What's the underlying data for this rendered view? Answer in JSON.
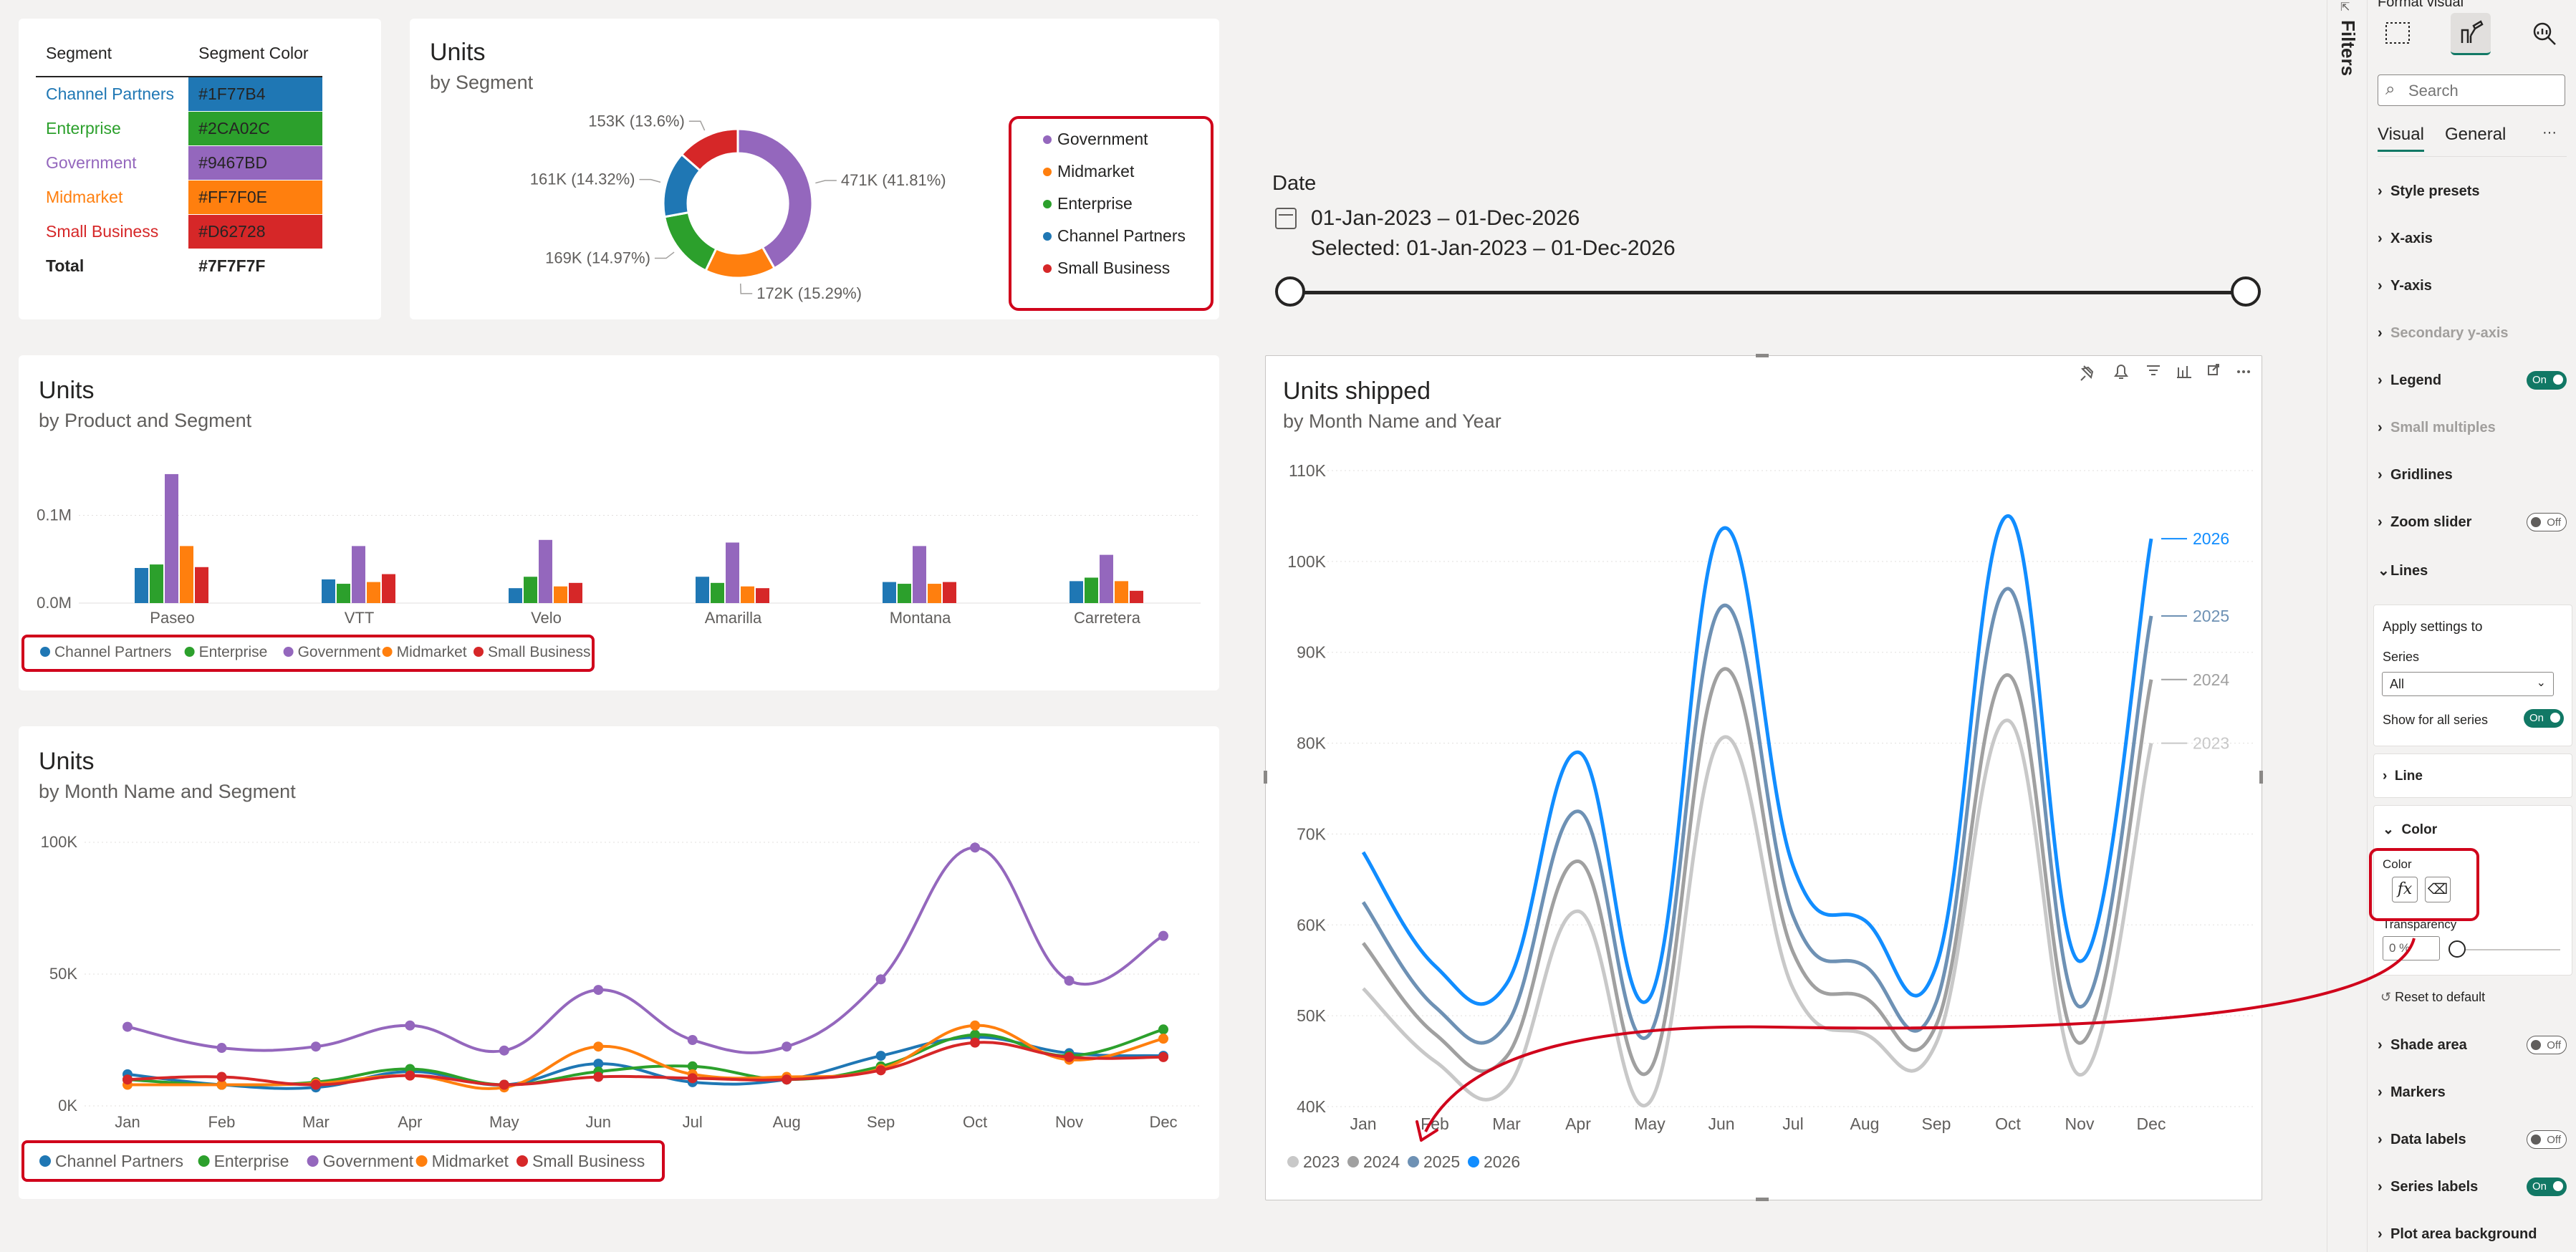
{
  "segment_table": {
    "headers": [
      "Segment",
      "Segment Color"
    ],
    "rows": [
      {
        "name": "Channel Partners",
        "color_label": "#1F77B4",
        "color": "#1F77B4"
      },
      {
        "name": "Enterprise",
        "color_label": "#2CA02C",
        "color": "#2CA02C"
      },
      {
        "name": "Government",
        "color_label": "#9467BD",
        "color": "#9467BD"
      },
      {
        "name": "Midmarket",
        "color_label": "#FF7F0E",
        "color": "#FF7F0E"
      },
      {
        "name": "Small Business",
        "color_label": "#D62728",
        "color": "#D62728"
      }
    ],
    "total": {
      "name": "Total",
      "color_label": "#7F7F7F"
    }
  },
  "donut": {
    "title": "Units",
    "subtitle": "by Segment"
  },
  "bar": {
    "title": "Units",
    "subtitle": "by Product and Segment"
  },
  "seg_line": {
    "title": "Units",
    "subtitle": "by Month Name and Segment"
  },
  "year_line": {
    "title": "Units shipped",
    "subtitle": "by Month Name and Year"
  },
  "date_slicer": {
    "label": "Date",
    "range": "01-Jan-2023 – 01-Dec-2026",
    "selected": "Selected: 01-Jan-2023 – 01-Dec-2026"
  },
  "chart_data": [
    {
      "type": "pie",
      "title": "Units",
      "subtitle": "by Segment",
      "categories": [
        "Government",
        "Midmarket",
        "Enterprise",
        "Channel Partners",
        "Small Business"
      ],
      "values": [
        471,
        172,
        169,
        161,
        153
      ],
      "data_labels": [
        "471K (41.81%)",
        "172K (15.29%)",
        "169K (14.97%)",
        "161K (14.32%)",
        "153K (13.6%)"
      ],
      "colors": [
        "#9467BD",
        "#FF7F0E",
        "#2CA02C",
        "#1F77B4",
        "#D62728"
      ],
      "legend_position": "right"
    },
    {
      "type": "bar",
      "title": "Units",
      "subtitle": "by Product and Segment",
      "categories": [
        "Paseo",
        "VTT",
        "Velo",
        "Amarilla",
        "Montana",
        "Carretera"
      ],
      "series": [
        {
          "name": "Channel Partners",
          "color": "#1F77B4",
          "values": [
            0.04,
            0.027,
            0.017,
            0.03,
            0.024,
            0.025
          ]
        },
        {
          "name": "Enterprise",
          "color": "#2CA02C",
          "values": [
            0.044,
            0.022,
            0.03,
            0.023,
            0.022,
            0.029
          ]
        },
        {
          "name": "Government",
          "color": "#9467BD",
          "values": [
            0.147,
            0.065,
            0.072,
            0.069,
            0.065,
            0.055
          ]
        },
        {
          "name": "Midmarket",
          "color": "#FF7F0E",
          "values": [
            0.065,
            0.024,
            0.019,
            0.019,
            0.022,
            0.025
          ]
        },
        {
          "name": "Small Business",
          "color": "#D62728",
          "values": [
            0.041,
            0.033,
            0.023,
            0.017,
            0.024,
            0.014
          ]
        }
      ],
      "yticks": [
        {
          "value": 0,
          "label": "0.0M"
        },
        {
          "value": 0.1,
          "label": "0.1M"
        }
      ],
      "ylim": [
        0,
        0.16
      ],
      "legend_position": "bottom"
    },
    {
      "type": "line",
      "title": "Units",
      "subtitle": "by Month Name and Segment",
      "categories": [
        "Jan",
        "Feb",
        "Mar",
        "Apr",
        "May",
        "Jun",
        "Jul",
        "Aug",
        "Sep",
        "Oct",
        "Nov",
        "Dec"
      ],
      "series": [
        {
          "name": "Channel Partners",
          "color": "#1F77B4",
          "values": [
            12000,
            8000,
            7000,
            13000,
            8000,
            16000,
            9000,
            10000,
            19000,
            26000,
            20000,
            19000
          ]
        },
        {
          "name": "Enterprise",
          "color": "#2CA02C",
          "values": [
            10000,
            8000,
            9000,
            14000,
            8000,
            13000,
            15000,
            10000,
            15000,
            27000,
            19000,
            29000
          ]
        },
        {
          "name": "Government",
          "color": "#9467BD",
          "values": [
            30000,
            22000,
            22500,
            30500,
            21000,
            44000,
            25000,
            22500,
            48000,
            98000,
            47500,
            64500
          ]
        },
        {
          "name": "Midmarket",
          "color": "#FF7F0E",
          "values": [
            8000,
            8000,
            8500,
            11500,
            7000,
            22500,
            12000,
            11000,
            14000,
            30500,
            17500,
            25500
          ]
        },
        {
          "name": "Small Business",
          "color": "#D62728",
          "values": [
            10000,
            11000,
            8000,
            11500,
            8000,
            11000,
            10500,
            10000,
            13500,
            24000,
            18500,
            18500
          ]
        }
      ],
      "yticks": [
        {
          "value": 0,
          "label": "0K"
        },
        {
          "value": 50000,
          "label": "50K"
        },
        {
          "value": 100000,
          "label": "100K"
        }
      ],
      "ylim": [
        0,
        100000
      ],
      "legend_position": "bottom"
    },
    {
      "type": "line",
      "title": "Units shipped",
      "subtitle": "by Month Name and Year",
      "categories": [
        "Jan",
        "Feb",
        "Mar",
        "Apr",
        "May",
        "Jun",
        "Jul",
        "Aug",
        "Sep",
        "Oct",
        "Nov",
        "Dec"
      ],
      "series": [
        {
          "name": "2023",
          "color": "#C8C8C8",
          "values": [
            53000,
            45000,
            42000,
            61500,
            40500,
            80500,
            53000,
            48000,
            47000,
            82500,
            43500,
            80000
          ]
        },
        {
          "name": "2024",
          "color": "#A0A0A0",
          "values": [
            58000,
            48000,
            45500,
            67000,
            44000,
            88000,
            57000,
            52000,
            49000,
            87500,
            47000,
            87000
          ]
        },
        {
          "name": "2025",
          "color": "#6E91B4",
          "values": [
            62500,
            51000,
            49000,
            72500,
            48000,
            95000,
            61000,
            55500,
            51500,
            97000,
            51000,
            94000
          ]
        },
        {
          "name": "2026",
          "color": "#118DFF",
          "values": [
            68000,
            55500,
            53500,
            79000,
            52000,
            103500,
            66500,
            60500,
            55500,
            105000,
            56000,
            102500
          ]
        }
      ],
      "yticks": [
        {
          "value": 40000,
          "label": "40K"
        },
        {
          "value": 50000,
          "label": "50K"
        },
        {
          "value": 60000,
          "label": "60K"
        },
        {
          "value": 70000,
          "label": "70K"
        },
        {
          "value": 80000,
          "label": "80K"
        },
        {
          "value": 90000,
          "label": "90K"
        },
        {
          "value": 100000,
          "label": "100K"
        },
        {
          "value": 110000,
          "label": "110K"
        }
      ],
      "ylim": [
        40000,
        110000
      ],
      "series_labels": true,
      "legend_position": "bottom-left"
    }
  ],
  "format_pane": {
    "title": "Format visual",
    "search_placeholder": "Search",
    "tabs": [
      "Visual",
      "General"
    ],
    "more": "···",
    "sections": [
      {
        "label": "Style presets",
        "toggle": "",
        "disabled": false
      },
      {
        "label": "X-axis",
        "toggle": "",
        "disabled": false
      },
      {
        "label": "Y-axis",
        "toggle": "",
        "disabled": false
      },
      {
        "label": "Secondary y-axis",
        "toggle": "",
        "disabled": true
      },
      {
        "label": "Legend",
        "toggle": "On",
        "disabled": false
      },
      {
        "label": "Small multiples",
        "toggle": "",
        "disabled": true
      },
      {
        "label": "Gridlines",
        "toggle": "",
        "disabled": false
      },
      {
        "label": "Zoom slider",
        "toggle": "Off",
        "disabled": false
      },
      {
        "label": "Lines",
        "toggle": "",
        "disabled": false
      }
    ],
    "apply_settings": "Apply settings to",
    "series_label": "Series",
    "series_value": "All",
    "show_all": "Show for all series",
    "show_all_toggle": "On",
    "line_label": "Line",
    "color_section": "Color",
    "color_label": "Color",
    "fx_label": "fx",
    "transparency_label": "Transparency",
    "transparency_value": "0 %",
    "reset_label": "Reset to default",
    "lower_sections": [
      {
        "label": "Shade area",
        "toggle": "Off"
      },
      {
        "label": "Markers",
        "toggle": ""
      },
      {
        "label": "Data labels",
        "toggle": "Off"
      },
      {
        "label": "Series labels",
        "toggle": "On"
      },
      {
        "label": "Plot area background",
        "toggle": ""
      }
    ]
  },
  "filters_label": "Filters"
}
